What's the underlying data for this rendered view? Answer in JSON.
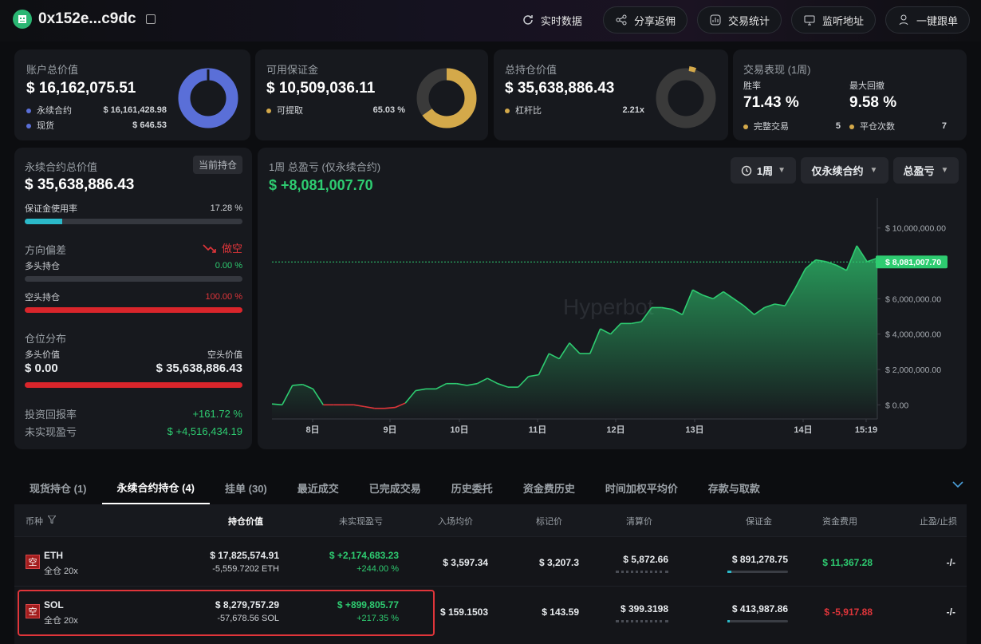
{
  "header": {
    "address": "0x152e...c9dc",
    "buttons": [
      "实时数据",
      "分享返佣",
      "交易统计",
      "监听地址",
      "一键跟单"
    ]
  },
  "summary": {
    "account": {
      "label": "账户总价值",
      "value": "$ 16,162,075.51",
      "items": [
        {
          "name": "永续合约",
          "value": "$ 16,161,428.98"
        },
        {
          "name": "现货",
          "value": "$ 646.53"
        }
      ]
    },
    "margin": {
      "label": "可用保证金",
      "value": "$ 10,509,036.11",
      "item": "可提取",
      "pct": "65.03 %",
      "fraction": 0.6503
    },
    "position": {
      "label": "总持仓价值",
      "value": "$ 35,638,886.43",
      "item": "杠杆比",
      "ratio": "2.21x"
    },
    "performance": {
      "label": "交易表现 (1周)",
      "win_label": "胜率",
      "win": "71.43 %",
      "dd_label": "最大回撤",
      "dd": "9.58 %",
      "done_label": "完整交易",
      "done": "5",
      "close_label": "平仓次数",
      "close": "7"
    }
  },
  "perp": {
    "label": "永续合约总价值",
    "tag": "当前持仓",
    "value": "$ 35,638,886.43",
    "margin_usage_label": "保证金使用率",
    "margin_usage": "17.28 %",
    "margin_usage_frac": 0.1728,
    "bias_label": "方向偏差",
    "bias": "做空",
    "long_label": "多头持仓",
    "long_pct": "0.00 %",
    "long_frac": 0,
    "short_label": "空头持仓",
    "short_pct": "100.00 %",
    "short_frac": 1,
    "dist_label": "仓位分布",
    "long_val_label": "多头价值",
    "short_val_label": "空头价值",
    "long_val": "$ 0.00",
    "short_val": "$ 35,638,886.43",
    "roi_label": "投资回报率",
    "roi": "+161.72 %",
    "upnl_label": "未实现盈亏",
    "upnl": "$ +4,516,434.19"
  },
  "chart": {
    "title": "1周 总盈亏 (仅永续合约)",
    "value": "$ +8,081,007.70",
    "filters": [
      "1周",
      "仅永续合约",
      "总盈亏"
    ],
    "watermark": "Hyperbot"
  },
  "chart_data": {
    "type": "area",
    "x_labels": [
      "8日",
      "9日",
      "10日",
      "11日",
      "12日",
      "13日",
      "14日",
      "15:19"
    ],
    "y_ticks": [
      "$ 10,000,000.00",
      "$ 8,081,007.70",
      "$ 6,000,000.00",
      "$ 4,000,000.00",
      "$ 2,000,000.00",
      "$ 0.00"
    ],
    "ylim": [
      -800000,
      10800000
    ],
    "current": 8081007.7,
    "values": [
      50000,
      0,
      1100000,
      1150000,
      900000,
      0,
      0,
      0,
      0,
      -100000,
      -200000,
      -200000,
      -150000,
      100000,
      800000,
      900000,
      900000,
      1200000,
      1200000,
      1100000,
      1200000,
      1500000,
      1200000,
      1000000,
      1000000,
      1600000,
      1700000,
      2900000,
      2600000,
      3500000,
      2900000,
      2900000,
      4300000,
      4000000,
      4600000,
      4600000,
      4700000,
      5500000,
      5500000,
      5400000,
      5100000,
      6500000,
      6200000,
      6000000,
      6400000,
      6000000,
      5600000,
      5100000,
      5500000,
      5700000,
      5600000,
      6600000,
      7700000,
      8200000,
      8100000,
      7900000,
      7600000,
      9000000,
      8100000,
      8300000
    ],
    "line_green": "#2ecc71",
    "line_red": "#e0353a"
  },
  "tabs": [
    "现货持仓 (1)",
    "永续合约持仓 (4)",
    "挂单 (30)",
    "最近成交",
    "已完成交易",
    "历史委托",
    "资金费历史",
    "时间加权平均价",
    "存款与取款"
  ],
  "table": {
    "headers": [
      "币种",
      "持仓价值",
      "未实现盈亏",
      "入场均价",
      "标记价",
      "清算价",
      "保证金",
      "资金费用",
      "止盈/止损"
    ],
    "rows": [
      {
        "side": "空",
        "coin": "ETH",
        "lev": "全仓 20x",
        "value": "$ 17,825,574.91",
        "size": "-5,559.7202 ETH",
        "pnl": "$ +2,174,683.23",
        "pnl_pct": "+244.00 %",
        "entry": "$ 3,597.34",
        "mark": "$ 3,207.3",
        "liq": "$ 5,872.66",
        "margin": "$ 891,278.75",
        "fund": "$ 11,367.28",
        "tpsl": "-/-"
      },
      {
        "side": "空",
        "coin": "SOL",
        "lev": "全仓 20x",
        "value": "$ 8,279,757.29",
        "size": "-57,678.56 SOL",
        "pnl": "$ +899,805.77",
        "pnl_pct": "+217.35 %",
        "entry": "$ 159.1503",
        "mark": "$ 143.59",
        "liq": "$ 399.3198",
        "margin": "$ 413,987.86",
        "fund": "$ -5,917.88",
        "tpsl": "-/-"
      }
    ]
  }
}
